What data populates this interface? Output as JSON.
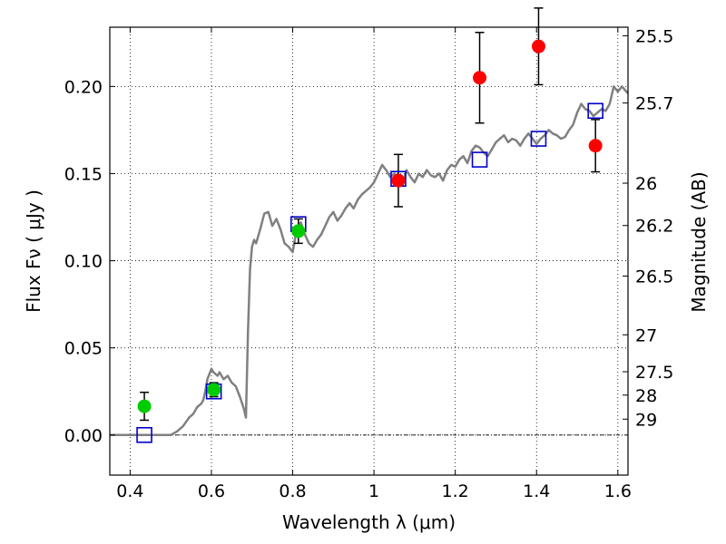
{
  "chart_data": {
    "type": "scatter",
    "title": "",
    "xlabel": "Wavelength  λ (μm)",
    "ylabel": "Flux  Fν  ( μJy )",
    "y2label": "Magnitude (AB)",
    "xlim": [
      0.35,
      1.625
    ],
    "ylim": [
      -0.023,
      0.234
    ],
    "grid": true,
    "x_ticks": [
      0.4,
      0.6,
      0.8,
      1.0,
      1.2,
      1.4,
      1.6
    ],
    "x_tick_labels": [
      "0.4",
      "0.6",
      "0.8",
      "1",
      "1.2",
      "1.4",
      "1.6"
    ],
    "y_ticks": [
      0.0,
      0.05,
      0.1,
      0.15,
      0.2
    ],
    "y_tick_labels": [
      "0.00",
      "0.05",
      "0.10",
      "0.15",
      "0.20"
    ],
    "y2_ticks": [
      {
        "label": "25.5",
        "flux": 0.2291
      },
      {
        "label": "25.7",
        "flux": 0.1905
      },
      {
        "label": "26",
        "flux": 0.1445
      },
      {
        "label": "26.2",
        "flux": 0.1202
      },
      {
        "label": "26.5",
        "flux": 0.0912
      },
      {
        "label": "27",
        "flux": 0.0575
      },
      {
        "label": "27.5",
        "flux": 0.0363
      },
      {
        "label": "28",
        "flux": 0.0229
      },
      {
        "label": "29",
        "flux": 0.0091
      }
    ],
    "zero_line": 0.0,
    "colors": {
      "model": "#808080",
      "green": "#00cc00",
      "red": "#ff0000",
      "square": "#0000cc",
      "errorbar": "#000000"
    },
    "series": [
      {
        "kind": "model_spectrum",
        "x": [
          0.35,
          0.5,
          0.515,
          0.53,
          0.545,
          0.555,
          0.565,
          0.575,
          0.58,
          0.585,
          0.59,
          0.6,
          0.605,
          0.615,
          0.62,
          0.63,
          0.64,
          0.65,
          0.66,
          0.67,
          0.68,
          0.685,
          0.69,
          0.695,
          0.7,
          0.705,
          0.71,
          0.72,
          0.73,
          0.74,
          0.75,
          0.76,
          0.77,
          0.78,
          0.79,
          0.8,
          0.81,
          0.82,
          0.83,
          0.84,
          0.85,
          0.86,
          0.87,
          0.88,
          0.89,
          0.9,
          0.91,
          0.92,
          0.93,
          0.94,
          0.95,
          0.96,
          0.97,
          0.98,
          0.99,
          1.0,
          1.01,
          1.02,
          1.03,
          1.04,
          1.05,
          1.06,
          1.07,
          1.08,
          1.09,
          1.1,
          1.11,
          1.12,
          1.13,
          1.14,
          1.15,
          1.16,
          1.17,
          1.18,
          1.19,
          1.2,
          1.21,
          1.22,
          1.23,
          1.24,
          1.25,
          1.26,
          1.27,
          1.28,
          1.29,
          1.3,
          1.31,
          1.32,
          1.33,
          1.34,
          1.35,
          1.36,
          1.37,
          1.38,
          1.39,
          1.4,
          1.41,
          1.42,
          1.43,
          1.44,
          1.45,
          1.46,
          1.47,
          1.48,
          1.49,
          1.5,
          1.51,
          1.52,
          1.53,
          1.54,
          1.55,
          1.56,
          1.57,
          1.58,
          1.59,
          1.6,
          1.61,
          1.625
        ],
        "y": [
          0.0,
          0.0,
          0.002,
          0.005,
          0.01,
          0.012,
          0.016,
          0.018,
          0.02,
          0.025,
          0.032,
          0.038,
          0.036,
          0.034,
          0.036,
          0.032,
          0.034,
          0.03,
          0.028,
          0.022,
          0.015,
          0.01,
          0.06,
          0.095,
          0.108,
          0.112,
          0.11,
          0.118,
          0.127,
          0.128,
          0.12,
          0.124,
          0.118,
          0.11,
          0.108,
          0.105,
          0.118,
          0.122,
          0.115,
          0.11,
          0.108,
          0.112,
          0.115,
          0.12,
          0.125,
          0.128,
          0.123,
          0.126,
          0.13,
          0.133,
          0.13,
          0.135,
          0.138,
          0.14,
          0.142,
          0.145,
          0.15,
          0.155,
          0.152,
          0.148,
          0.15,
          0.147,
          0.143,
          0.152,
          0.148,
          0.145,
          0.15,
          0.148,
          0.152,
          0.149,
          0.148,
          0.15,
          0.146,
          0.152,
          0.155,
          0.154,
          0.158,
          0.16,
          0.156,
          0.163,
          0.166,
          0.165,
          0.162,
          0.16,
          0.164,
          0.168,
          0.17,
          0.172,
          0.168,
          0.17,
          0.169,
          0.166,
          0.17,
          0.173,
          0.17,
          0.167,
          0.17,
          0.172,
          0.175,
          0.173,
          0.172,
          0.17,
          0.171,
          0.175,
          0.178,
          0.185,
          0.19,
          0.187,
          0.186,
          0.183,
          0.185,
          0.187,
          0.186,
          0.19,
          0.2,
          0.197,
          0.2,
          0.196
        ]
      },
      {
        "kind": "green_points",
        "points": [
          {
            "x": 0.435,
            "y": 0.0165,
            "err": 0.008
          },
          {
            "x": 0.606,
            "y": 0.026,
            "err": 0.004
          },
          {
            "x": 0.814,
            "y": 0.117,
            "err": 0.007
          }
        ]
      },
      {
        "kind": "red_points",
        "points": [
          {
            "x": 1.06,
            "y": 0.146,
            "err": 0.015
          },
          {
            "x": 1.26,
            "y": 0.205,
            "err": 0.026
          },
          {
            "x": 1.405,
            "y": 0.223,
            "err": 0.022
          },
          {
            "x": 1.545,
            "y": 0.166,
            "err": 0.015
          }
        ]
      },
      {
        "kind": "model_squares",
        "points": [
          {
            "x": 0.435,
            "y": 0.0
          },
          {
            "x": 0.606,
            "y": 0.025
          },
          {
            "x": 0.814,
            "y": 0.121
          },
          {
            "x": 1.06,
            "y": 0.147
          },
          {
            "x": 1.26,
            "y": 0.158
          },
          {
            "x": 1.405,
            "y": 0.17
          },
          {
            "x": 1.545,
            "y": 0.186
          }
        ]
      }
    ]
  }
}
